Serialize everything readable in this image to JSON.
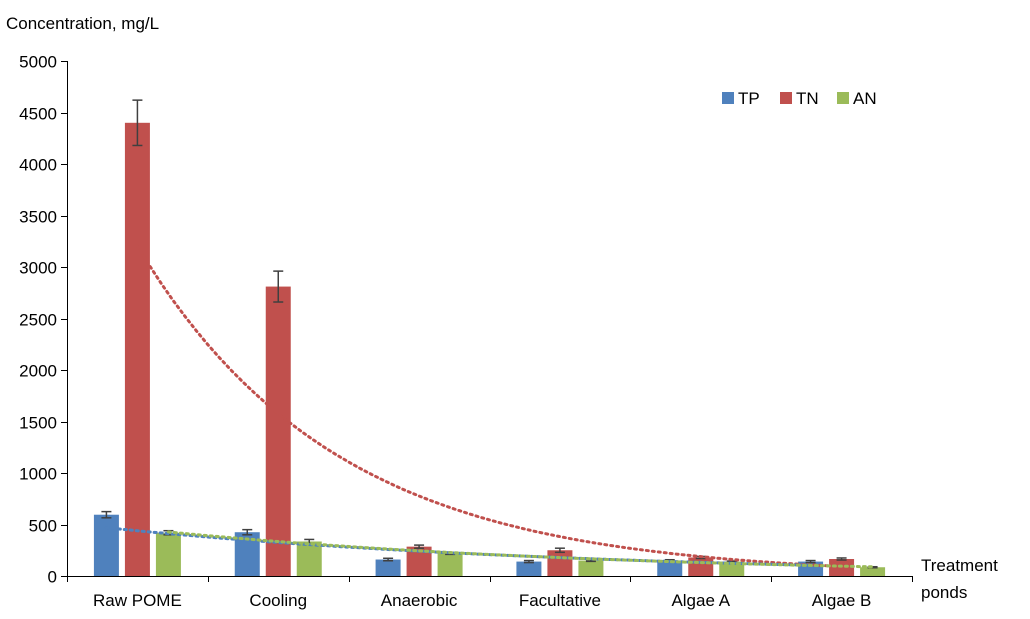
{
  "chart_data": {
    "type": "bar",
    "ylabel": "Concentration, mg/L",
    "xlabel": "Treatment ponds",
    "ylim": [
      0,
      5000
    ],
    "yticks": [
      0,
      500,
      1000,
      1500,
      2000,
      2500,
      3000,
      3500,
      4000,
      4500,
      5000
    ],
    "categories": [
      "Raw POME",
      "Cooling",
      "Anaerobic",
      "Facultative",
      "Algae A",
      "Algae B"
    ],
    "series": [
      {
        "name": "TP",
        "color": "#4f81bd",
        "values": [
          595,
          425,
          160,
          140,
          150,
          140
        ],
        "errors": [
          30,
          25,
          12,
          10,
          8,
          10
        ]
      },
      {
        "name": "TN",
        "color": "#c0504d",
        "values": [
          4400,
          2810,
          285,
          250,
          180,
          165
        ],
        "errors": [
          220,
          150,
          15,
          20,
          10,
          10
        ]
      },
      {
        "name": "AN",
        "color": "#9bbb59",
        "values": [
          420,
          335,
          220,
          150,
          140,
          85
        ],
        "errors": [
          20,
          20,
          10,
          8,
          5,
          5
        ]
      }
    ],
    "trendlines": [
      {
        "series": "TN",
        "type": "exponential",
        "style": "dotted"
      },
      {
        "series": "TP",
        "type": "exponential",
        "style": "dotted"
      },
      {
        "series": "AN",
        "type": "exponential",
        "style": "dotted"
      }
    ],
    "legend": "top-right",
    "grid": false
  }
}
